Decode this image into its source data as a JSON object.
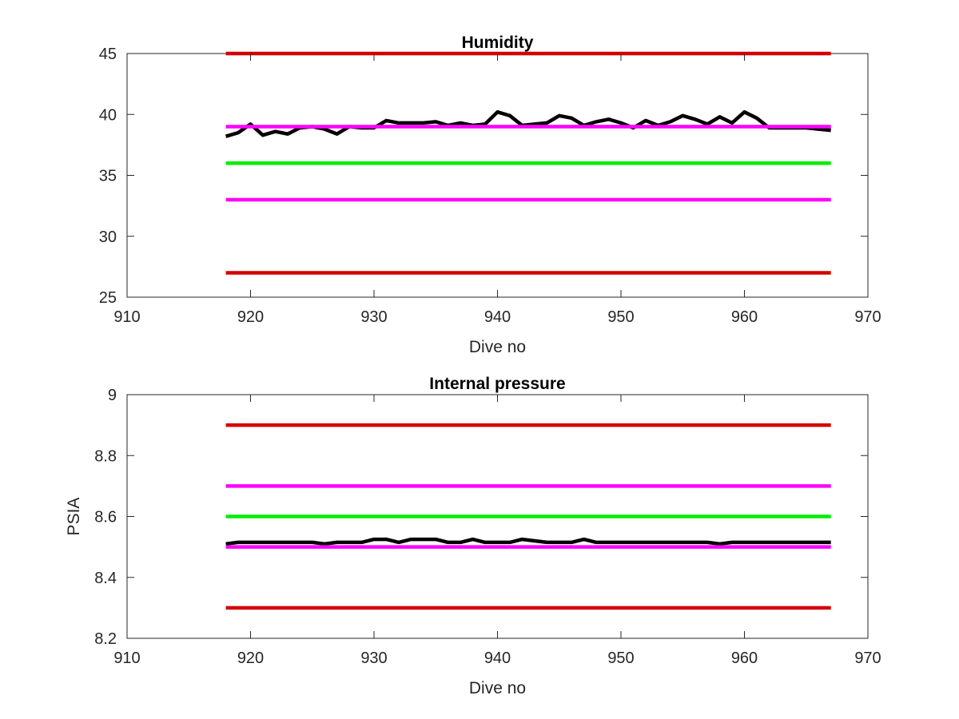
{
  "chart_data": [
    {
      "type": "line",
      "title": "Humidity",
      "xlabel": "Dive no",
      "ylabel": "",
      "xlim": [
        910,
        970
      ],
      "ylim": [
        25,
        45
      ],
      "xticks": [
        910,
        920,
        930,
        940,
        950,
        960,
        970
      ],
      "yticks": [
        25,
        30,
        35,
        40,
        45
      ],
      "grid": false,
      "series": [
        {
          "color": "#000000",
          "x": [
            918,
            919,
            920,
            921,
            922,
            923,
            924,
            925,
            926,
            927,
            928,
            929,
            930,
            931,
            932,
            933,
            934,
            935,
            936,
            937,
            938,
            939,
            940,
            941,
            942,
            943,
            944,
            945,
            946,
            947,
            948,
            949,
            950,
            951,
            952,
            953,
            954,
            955,
            956,
            957,
            958,
            959,
            960,
            961,
            962,
            963,
            964,
            965,
            966,
            967
          ],
          "y": [
            38.2,
            38.5,
            39.2,
            38.3,
            38.6,
            38.4,
            38.9,
            39.0,
            38.8,
            38.4,
            39.0,
            38.9,
            38.9,
            39.5,
            39.3,
            39.3,
            39.3,
            39.4,
            39.1,
            39.3,
            39.1,
            39.2,
            40.2,
            39.9,
            39.1,
            39.2,
            39.3,
            39.9,
            39.7,
            39.1,
            39.4,
            39.6,
            39.3,
            38.9,
            39.5,
            39.1,
            39.4,
            39.9,
            39.6,
            39.2,
            39.8,
            39.3,
            40.2,
            39.7,
            38.9,
            38.9,
            38.9,
            38.9,
            38.8,
            38.7
          ]
        },
        {
          "color": "#d40000",
          "x": [
            918,
            967
          ],
          "y": [
            45,
            45
          ]
        },
        {
          "color": "#ff00ff",
          "x": [
            918,
            967
          ],
          "y": [
            39,
            39
          ]
        },
        {
          "color": "#00ee00",
          "x": [
            918,
            967
          ],
          "y": [
            36,
            36
          ]
        },
        {
          "color": "#ff00ff",
          "x": [
            918,
            967
          ],
          "y": [
            33,
            33
          ]
        },
        {
          "color": "#d40000",
          "x": [
            918,
            967
          ],
          "y": [
            27,
            27
          ]
        }
      ]
    },
    {
      "type": "line",
      "title": "Internal pressure",
      "xlabel": "Dive no",
      "ylabel": "PSIA",
      "xlim": [
        910,
        970
      ],
      "ylim": [
        8.2,
        9
      ],
      "xticks": [
        910,
        920,
        930,
        940,
        950,
        960,
        970
      ],
      "yticks": [
        8.2,
        8.4,
        8.6,
        8.8,
        9
      ],
      "grid": false,
      "series": [
        {
          "color": "#000000",
          "x": [
            918,
            919,
            920,
            921,
            922,
            923,
            924,
            925,
            926,
            927,
            928,
            929,
            930,
            931,
            932,
            933,
            934,
            935,
            936,
            937,
            938,
            939,
            940,
            941,
            942,
            943,
            944,
            945,
            946,
            947,
            948,
            949,
            950,
            951,
            952,
            953,
            954,
            955,
            956,
            957,
            958,
            959,
            960,
            961,
            962,
            963,
            964,
            965,
            966,
            967
          ],
          "y": [
            8.51,
            8.515,
            8.515,
            8.515,
            8.515,
            8.515,
            8.515,
            8.515,
            8.51,
            8.515,
            8.515,
            8.515,
            8.525,
            8.525,
            8.515,
            8.525,
            8.525,
            8.525,
            8.515,
            8.515,
            8.525,
            8.515,
            8.515,
            8.515,
            8.525,
            8.52,
            8.515,
            8.515,
            8.515,
            8.525,
            8.515,
            8.515,
            8.515,
            8.515,
            8.515,
            8.515,
            8.515,
            8.515,
            8.515,
            8.515,
            8.51,
            8.515,
            8.515,
            8.515,
            8.515,
            8.515,
            8.515,
            8.515,
            8.515,
            8.515
          ]
        },
        {
          "color": "#d40000",
          "x": [
            918,
            967
          ],
          "y": [
            8.9,
            8.9
          ]
        },
        {
          "color": "#ff00ff",
          "x": [
            918,
            967
          ],
          "y": [
            8.7,
            8.7
          ]
        },
        {
          "color": "#00ee00",
          "x": [
            918,
            967
          ],
          "y": [
            8.6,
            8.6
          ]
        },
        {
          "color": "#ff00ff",
          "x": [
            918,
            967
          ],
          "y": [
            8.5,
            8.5
          ]
        },
        {
          "color": "#d40000",
          "x": [
            918,
            967
          ],
          "y": [
            8.3,
            8.3
          ]
        }
      ]
    }
  ]
}
